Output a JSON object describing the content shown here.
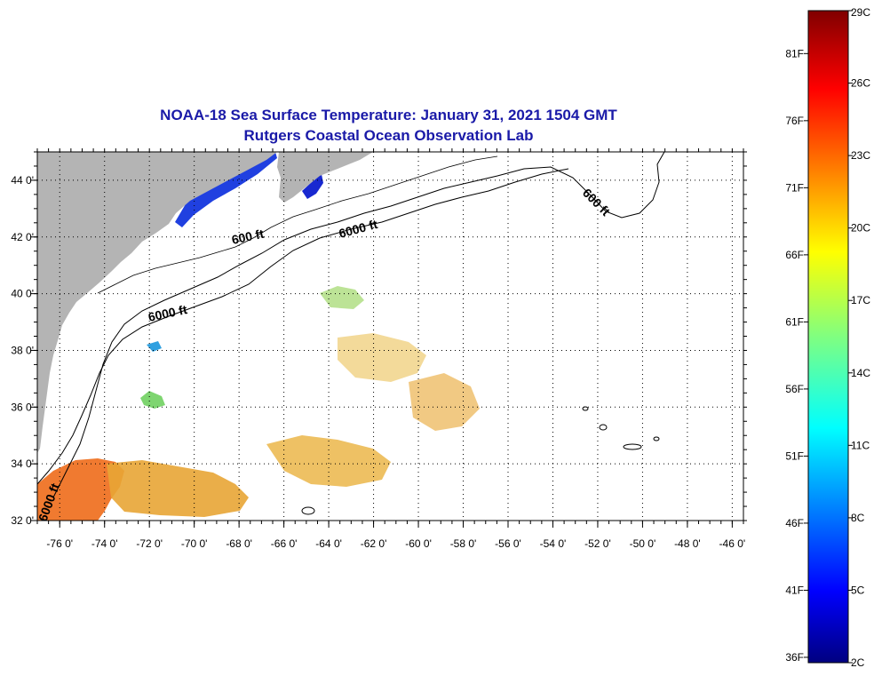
{
  "title": {
    "line1": "NOAA-18 Sea Surface Temperature:  January 31, 2021 1504 GMT",
    "line2": "Rutgers Coastal Ocean Observation Lab"
  },
  "map": {
    "lon_range": [
      -77,
      -45.5
    ],
    "lat_range": [
      32,
      45
    ],
    "lat_ticks": [
      {
        "value": 44,
        "label": "44 0'"
      },
      {
        "value": 42,
        "label": "42 0'"
      },
      {
        "value": 40,
        "label": "40 0'"
      },
      {
        "value": 38,
        "label": "38 0'"
      },
      {
        "value": 36,
        "label": "36 0'"
      },
      {
        "value": 34,
        "label": "34 0'"
      },
      {
        "value": 32,
        "label": "32 0'"
      }
    ],
    "lon_ticks": [
      {
        "value": -76,
        "label": "-76 0'"
      },
      {
        "value": -74,
        "label": "-74 0'"
      },
      {
        "value": -72,
        "label": "-72 0'"
      },
      {
        "value": -70,
        "label": "-70 0'"
      },
      {
        "value": -68,
        "label": "-68 0'"
      },
      {
        "value": -66,
        "label": "-66 0'"
      },
      {
        "value": -64,
        "label": "-64 0'"
      },
      {
        "value": -62,
        "label": "-62 0'"
      },
      {
        "value": -60,
        "label": "-60 0'"
      },
      {
        "value": -58,
        "label": "-58 0'"
      },
      {
        "value": -56,
        "label": "-56 0'"
      },
      {
        "value": -54,
        "label": "-54 0'"
      },
      {
        "value": -52,
        "label": "-52 0'"
      },
      {
        "value": -50,
        "label": "-50 0'"
      },
      {
        "value": -48,
        "label": "-48 0'"
      },
      {
        "value": -46,
        "label": "-46 0'"
      }
    ],
    "contour_labels": [
      "600 ft",
      "6000 ft",
      "6000 ft",
      "600 ft",
      "6000 ft"
    ],
    "land_color": "#b4b4b4",
    "grid": "dotted"
  },
  "colorbar": {
    "min_c": 2,
    "max_c": 29,
    "celsius_labels": [
      "29C",
      "26C",
      "23C",
      "20C",
      "17C",
      "14C",
      "11C",
      "8C",
      "5C",
      "2C"
    ],
    "fahrenheit_labels": [
      "81F",
      "76F",
      "71F",
      "66F",
      "61F",
      "56F",
      "51F",
      "46F",
      "41F",
      "36F"
    ],
    "colormap": "jet"
  }
}
